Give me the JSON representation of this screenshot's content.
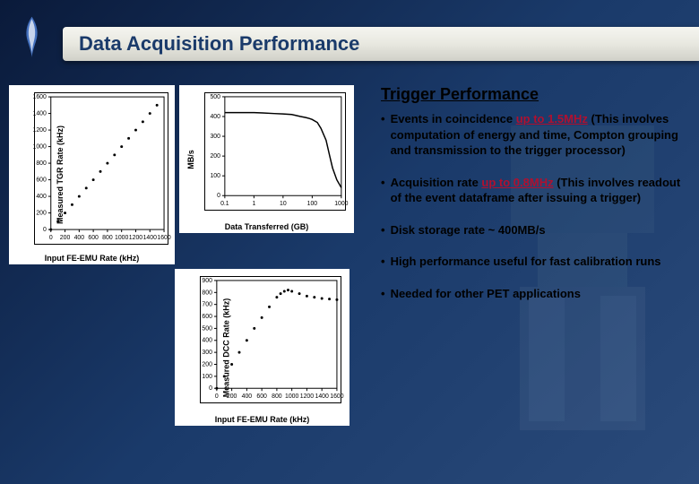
{
  "header": {
    "title": "Data Acquisition Performance"
  },
  "section": {
    "title": "Trigger Performance"
  },
  "bullets": [
    {
      "prefix": "Events in coincidence ",
      "highlight": "up to 1.5MHz",
      "suffix": " (This involves computation of energy and time, Compton grouping and transmission to the trigger processor)"
    },
    {
      "prefix": "Acquisition rate ",
      "highlight": "up to 0.8MHz",
      "suffix": " (This involves readout of the event dataframe after issuing a trigger)"
    },
    {
      "prefix": "Disk storage rate ~ 400MB/s",
      "highlight": "",
      "suffix": ""
    },
    {
      "prefix": "High performance useful for fast calibration runs",
      "highlight": "",
      "suffix": ""
    },
    {
      "prefix": "Needed for other PET applications",
      "highlight": "",
      "suffix": ""
    }
  ],
  "chart_tl": {
    "type": "scatter",
    "ylabel": "Measured TGR Rate (kHz)",
    "xlabel": "Input FE-EMU Rate (kHz)",
    "xlim": [
      0,
      1600
    ],
    "ylim": [
      0,
      1600
    ],
    "xticks": [
      0,
      200,
      400,
      600,
      800,
      1000,
      1200,
      1400,
      1600
    ],
    "yticks": [
      0,
      200,
      400,
      600,
      800,
      1000,
      1200,
      1400,
      1600
    ],
    "tick_fontsize": 8,
    "label_fontsize": 9,
    "background_color": "#ffffff",
    "marker": "circle",
    "marker_size": 3,
    "marker_color": "#000000",
    "points": [
      [
        0,
        0
      ],
      [
        100,
        100
      ],
      [
        200,
        200
      ],
      [
        300,
        300
      ],
      [
        400,
        400
      ],
      [
        500,
        500
      ],
      [
        600,
        600
      ],
      [
        700,
        700
      ],
      [
        800,
        800
      ],
      [
        900,
        900
      ],
      [
        1000,
        1000
      ],
      [
        1100,
        1100
      ],
      [
        1200,
        1200
      ],
      [
        1300,
        1300
      ],
      [
        1400,
        1400
      ],
      [
        1500,
        1500
      ]
    ]
  },
  "chart_tr": {
    "type": "line",
    "ylabel": "MB/s",
    "xlabel": "Data Transferred (GB)",
    "xscale": "log",
    "xlim": [
      0.1,
      1000
    ],
    "ylim": [
      0,
      500
    ],
    "xticks": [
      0.1,
      1,
      10,
      100,
      1000
    ],
    "yticks": [
      0,
      100,
      200,
      300,
      400,
      500
    ],
    "tick_fontsize": 8,
    "label_fontsize": 9,
    "background_color": "#ffffff",
    "line_color": "#000000",
    "line_width": 1.5,
    "points": [
      [
        0.1,
        420
      ],
      [
        0.2,
        420
      ],
      [
        0.5,
        420
      ],
      [
        1,
        420
      ],
      [
        2,
        418
      ],
      [
        5,
        415
      ],
      [
        10,
        413
      ],
      [
        20,
        410
      ],
      [
        40,
        400
      ],
      [
        60,
        395
      ],
      [
        80,
        390
      ],
      [
        100,
        385
      ],
      [
        150,
        370
      ],
      [
        200,
        340
      ],
      [
        300,
        280
      ],
      [
        400,
        200
      ],
      [
        500,
        140
      ],
      [
        700,
        80
      ],
      [
        1000,
        40
      ]
    ],
    "step_segment": {
      "x_from": 15,
      "x_to": 40,
      "y_from": 415,
      "y_to": 395
    }
  },
  "chart_b": {
    "type": "scatter",
    "ylabel": "Measured DCC Rate (kHz)",
    "xlabel": "Input FE-EMU Rate (kHz)",
    "xlim": [
      0,
      1600
    ],
    "ylim": [
      0,
      900
    ],
    "xticks": [
      0,
      200,
      400,
      600,
      800,
      1000,
      1200,
      1400,
      1600
    ],
    "yticks": [
      0,
      100,
      200,
      300,
      400,
      500,
      600,
      700,
      800,
      900
    ],
    "tick_fontsize": 8,
    "label_fontsize": 9,
    "background_color": "#ffffff",
    "marker": "circle",
    "marker_size": 3,
    "marker_color": "#000000",
    "points": [
      [
        0,
        0
      ],
      [
        100,
        100
      ],
      [
        200,
        200
      ],
      [
        300,
        300
      ],
      [
        400,
        400
      ],
      [
        500,
        500
      ],
      [
        600,
        590
      ],
      [
        700,
        680
      ],
      [
        800,
        760
      ],
      [
        850,
        790
      ],
      [
        900,
        810
      ],
      [
        950,
        820
      ],
      [
        1000,
        810
      ],
      [
        1100,
        790
      ],
      [
        1200,
        770
      ],
      [
        1300,
        760
      ],
      [
        1400,
        750
      ],
      [
        1500,
        745
      ],
      [
        1600,
        740
      ]
    ]
  },
  "colors": {
    "bg_gradient_from": "#0a1a3a",
    "bg_gradient_to": "#2a4a7a",
    "title_color": "#1a3a6a",
    "highlight_color": "#b01030",
    "chart_bg": "#ffffff",
    "text_color": "#000000"
  }
}
